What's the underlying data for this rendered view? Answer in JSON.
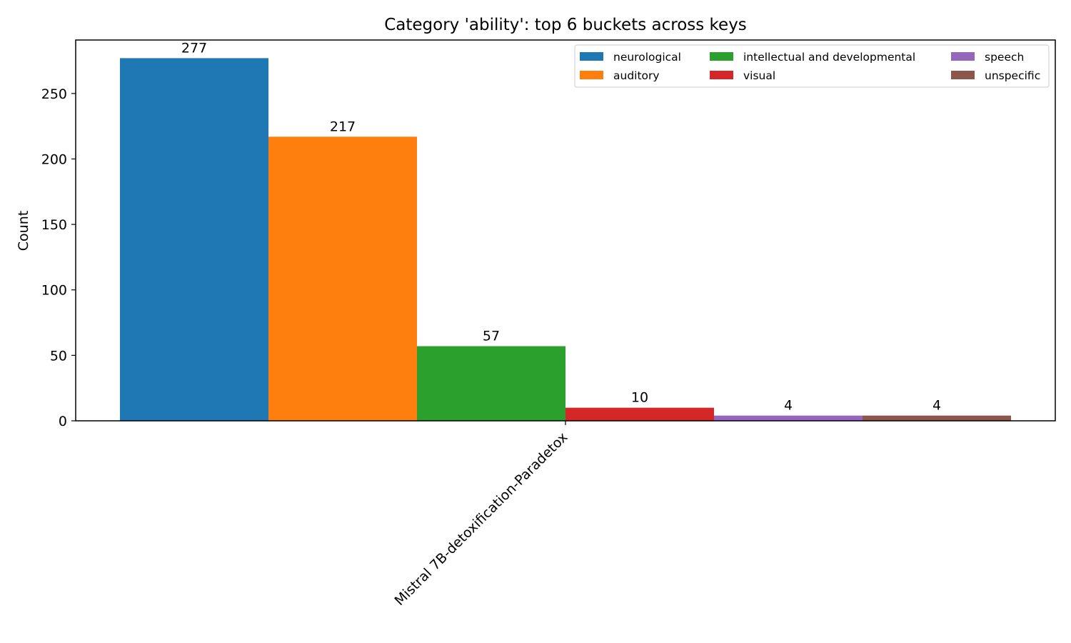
{
  "chart_data": {
    "type": "bar",
    "title": "Category 'ability': top 6 buckets across keys",
    "xlabel": "",
    "ylabel": "Count",
    "categories": [
      "Mistral 7B-detoxification-Paradetox"
    ],
    "series": [
      {
        "name": "neurological",
        "values": [
          277
        ],
        "color": "#1f77b4"
      },
      {
        "name": "auditory",
        "values": [
          217
        ],
        "color": "#ff7f0e"
      },
      {
        "name": "intellectual and developmental",
        "values": [
          57
        ],
        "color": "#2ca02c"
      },
      {
        "name": "visual",
        "values": [
          10
        ],
        "color": "#d62728"
      },
      {
        "name": "speech",
        "values": [
          4
        ],
        "color": "#9467bd"
      },
      {
        "name": "unspecific",
        "values": [
          4
        ],
        "color": "#8c564b"
      }
    ],
    "ylim": [
      0,
      290.85
    ],
    "yticks": [
      0,
      50,
      100,
      150,
      200,
      250
    ],
    "legend": {
      "placement": "top-right",
      "columns": 3
    },
    "grid": false
  }
}
